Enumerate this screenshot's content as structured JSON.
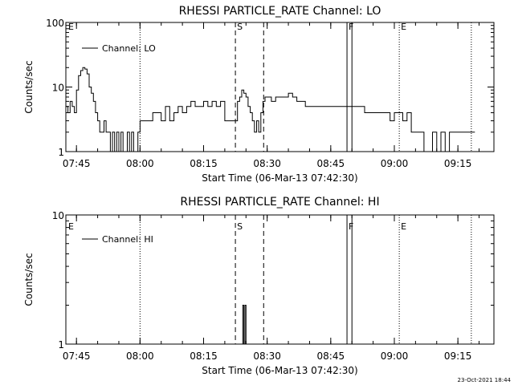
{
  "chart_data": [
    {
      "type": "line",
      "title": "RHESSI PARTICLE_RATE Channel: LO",
      "xlabel": "Start Time (06-Mar-13 07:42:30)",
      "ylabel": "Counts/sec",
      "y_scale": "log",
      "ylim": [
        1,
        100
      ],
      "xlim": [
        "07:42:30",
        "09:23:30"
      ],
      "x_ticks": [
        "07:45",
        "08:00",
        "08:15",
        "08:30",
        "08:45",
        "09:00",
        "09:15"
      ],
      "y_ticks": [
        "1",
        "10",
        "100"
      ],
      "legend": {
        "entries": [
          "Channel: LO"
        ],
        "placement": "top-left"
      },
      "markers": [
        {
          "label": "E",
          "time": "07:42:30",
          "style": "dotted"
        },
        {
          "label": "",
          "time": "08:00:00",
          "style": "dotted"
        },
        {
          "label": "S",
          "time": "08:22:30",
          "style": "dashed"
        },
        {
          "label": "",
          "time": "08:29:10",
          "style": "dashed"
        },
        {
          "label": "F",
          "time": "08:48:50",
          "style": "solid"
        },
        {
          "label": "",
          "time": "08:50:00",
          "style": "solid"
        },
        {
          "label": "E",
          "time": "09:01:10",
          "style": "dotted"
        },
        {
          "label": "",
          "time": "09:18:10",
          "style": "dotted"
        }
      ],
      "series": [
        {
          "x": [
            "07:42:30",
            "07:43:00",
            "07:43:30",
            "07:44:00",
            "07:44:30",
            "07:45:00",
            "07:45:30",
            "07:46:00",
            "07:46:30",
            "07:47:00",
            "07:47:30",
            "07:48:00",
            "07:48:30",
            "07:49:00",
            "07:49:30",
            "07:50:00",
            "07:50:30",
            "07:51:00",
            "07:51:30",
            "07:52:00",
            "07:52:30",
            "07:53:00",
            "07:53:30",
            "07:54:00",
            "07:54:30",
            "07:55:00",
            "07:55:30",
            "07:56:00",
            "07:56:30",
            "07:57:00",
            "07:57:30",
            "07:58:00",
            "07:58:30",
            "07:59:00",
            "07:59:30",
            "08:00:00",
            "08:01:00",
            "08:02:00",
            "08:03:00",
            "08:04:00",
            "08:05:00",
            "08:06:00",
            "08:07:00",
            "08:08:00",
            "08:09:00",
            "08:10:00",
            "08:11:00",
            "08:12:00",
            "08:13:00",
            "08:14:00",
            "08:15:00",
            "08:16:00",
            "08:17:00",
            "08:18:00",
            "08:19:00",
            "08:20:00",
            "08:21:00",
            "08:22:00",
            "08:23:00",
            "08:23:30",
            "08:24:00",
            "08:24:30",
            "08:25:00",
            "08:25:30",
            "08:26:00",
            "08:26:30",
            "08:27:00",
            "08:27:30",
            "08:28:00",
            "08:28:30",
            "08:29:00",
            "08:29:30",
            "08:30:00",
            "08:31:00",
            "08:32:00",
            "08:33:00",
            "08:34:00",
            "08:35:00",
            "08:36:00",
            "08:37:00",
            "08:38:00",
            "08:39:00",
            "08:40:00",
            "08:41:00",
            "08:42:00",
            "08:43:00",
            "08:44:00",
            "08:45:00",
            "08:46:00",
            "08:47:00",
            "08:48:00",
            "08:49:00",
            "08:50:00",
            "08:51:00",
            "08:52:00",
            "08:53:00",
            "08:54:00",
            "08:55:00",
            "08:56:00",
            "08:57:00",
            "08:58:00",
            "08:59:00",
            "09:00:00",
            "09:01:00",
            "09:02:00",
            "09:03:00",
            "09:04:00",
            "09:05:00",
            "09:06:00",
            "09:07:00",
            "09:08:00",
            "09:09:00",
            "09:10:00",
            "09:11:00",
            "09:12:00",
            "09:13:00",
            "09:14:00",
            "09:15:00",
            "09:16:00",
            "09:17:00",
            "09:18:00"
          ],
          "y": [
            5,
            4,
            6,
            5,
            4,
            9,
            15,
            18,
            20,
            19,
            16,
            10,
            8,
            6,
            4,
            3,
            2,
            2,
            3,
            2,
            2,
            1,
            2,
            1,
            2,
            1,
            2,
            1,
            1,
            2,
            1,
            2,
            1,
            1,
            2,
            3,
            3,
            3,
            4,
            4,
            3,
            5,
            3,
            4,
            5,
            4,
            5,
            6,
            5,
            5,
            6,
            5,
            6,
            5,
            6,
            3,
            3,
            3,
            6,
            7,
            9,
            8,
            7,
            5,
            4,
            3,
            2,
            3,
            2,
            4,
            6,
            7,
            7,
            6,
            7,
            7,
            7,
            8,
            7,
            6,
            6,
            5,
            5,
            5,
            5,
            5,
            5,
            5,
            5,
            5,
            5,
            5,
            5,
            5,
            5,
            4,
            4,
            4,
            4,
            4,
            4,
            3,
            4,
            4,
            3,
            4,
            2,
            2,
            2,
            1,
            1,
            2,
            1,
            2,
            1,
            2,
            2,
            2,
            2,
            2,
            2
          ]
        }
      ]
    },
    {
      "type": "line",
      "title": "RHESSI PARTICLE_RATE Channel: HI",
      "xlabel": "Start Time (06-Mar-13 07:42:30)",
      "ylabel": "Counts/sec",
      "y_scale": "log",
      "ylim": [
        1,
        10
      ],
      "xlim": [
        "07:42:30",
        "09:23:30"
      ],
      "x_ticks": [
        "07:45",
        "08:00",
        "08:15",
        "08:30",
        "08:45",
        "09:00",
        "09:15"
      ],
      "y_ticks": [
        "1",
        "10"
      ],
      "legend": {
        "entries": [
          "Channel: HI"
        ],
        "placement": "top-left"
      },
      "markers": [
        {
          "label": "E",
          "time": "07:42:30",
          "style": "dotted"
        },
        {
          "label": "",
          "time": "08:00:00",
          "style": "dotted"
        },
        {
          "label": "S",
          "time": "08:22:30",
          "style": "dashed"
        },
        {
          "label": "",
          "time": "08:29:10",
          "style": "dashed"
        },
        {
          "label": "F",
          "time": "08:48:50",
          "style": "solid"
        },
        {
          "label": "",
          "time": "08:50:00",
          "style": "solid"
        },
        {
          "label": "E",
          "time": "09:01:10",
          "style": "dotted"
        },
        {
          "label": "",
          "time": "09:18:10",
          "style": "dotted"
        }
      ],
      "series": [
        {
          "x": [
            "08:24:00",
            "08:24:15",
            "08:24:30",
            "08:24:45",
            "08:25:00",
            "08:25:15"
          ],
          "y": [
            1,
            2,
            1,
            2,
            1,
            1
          ]
        }
      ]
    }
  ],
  "footer": {
    "timestamp": "23-Oct-2021 18:44"
  }
}
